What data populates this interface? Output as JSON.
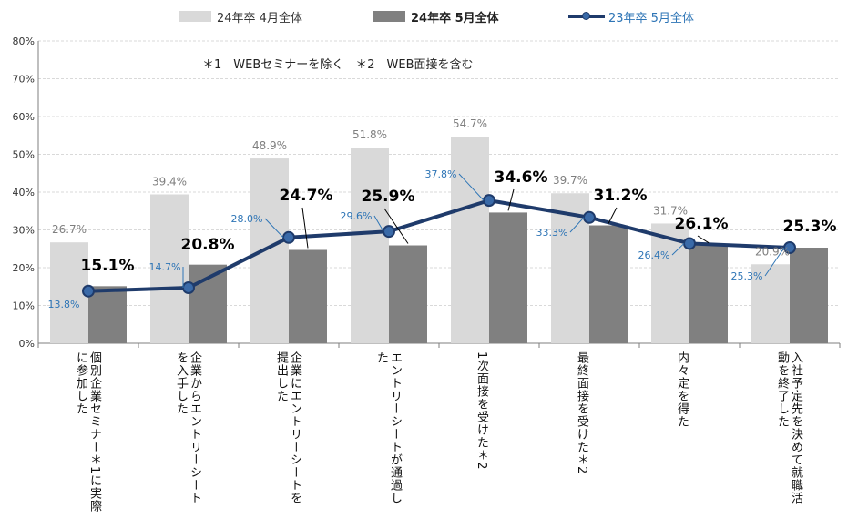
{
  "legend": {
    "s1": "24年卒 4月全体",
    "s2": "24年卒 5月全体",
    "s3": "23年卒 5月全体"
  },
  "note": "＊1　WEBセミナーを除く　＊2　WEB面接を含む",
  "colors": {
    "s1": "#d9d9d9",
    "s2": "#808080",
    "s3_line": "#1f3b6b",
    "s3_marker": "#3a6aa8",
    "s3_label": "#2e75b6",
    "grid": "#d9d9d9",
    "axis": "#7f7f7f"
  },
  "chart_data": {
    "type": "bar",
    "title": "",
    "xlabel": "",
    "ylabel": "",
    "ylim": [
      0,
      80
    ],
    "yticks": [
      "0%",
      "10%",
      "20%",
      "30%",
      "40%",
      "50%",
      "60%",
      "70%",
      "80%"
    ],
    "categories": [
      "個別企業セミナー＊1に実際に参加した",
      "企業からエントリーシートを入手した",
      "企業にエントリーシートを提出した",
      "エントリーシートが通過した",
      "1次面接を受けた＊2",
      "最終面接を受けた＊2",
      "内々定を得た",
      "入社予定先を決めて就職活動を終了した"
    ],
    "series": [
      {
        "name": "24年卒 4月全体",
        "kind": "bar",
        "values": [
          26.7,
          39.4,
          48.9,
          51.8,
          54.7,
          39.7,
          31.7,
          20.9
        ],
        "labels": [
          "26.7%",
          "39.4%",
          "48.9%",
          "51.8%",
          "54.7%",
          "39.7%",
          "31.7%",
          "20.9%"
        ]
      },
      {
        "name": "24年卒 5月全体",
        "kind": "bar",
        "values": [
          15.1,
          20.8,
          24.7,
          25.9,
          34.6,
          31.2,
          26.1,
          25.3
        ],
        "labels": [
          "15.1%",
          "20.8%",
          "24.7%",
          "25.9%",
          "34.6%",
          "31.2%",
          "26.1%",
          "25.3%"
        ]
      },
      {
        "name": "23年卒 5月全体",
        "kind": "line",
        "values": [
          13.8,
          14.7,
          28.0,
          29.6,
          37.8,
          33.3,
          26.4,
          25.3
        ],
        "labels": [
          "13.8%",
          "14.7%",
          "28.0%",
          "29.6%",
          "37.8%",
          "33.3%",
          "26.4%",
          "25.3%"
        ]
      }
    ],
    "legend_position": "top"
  }
}
